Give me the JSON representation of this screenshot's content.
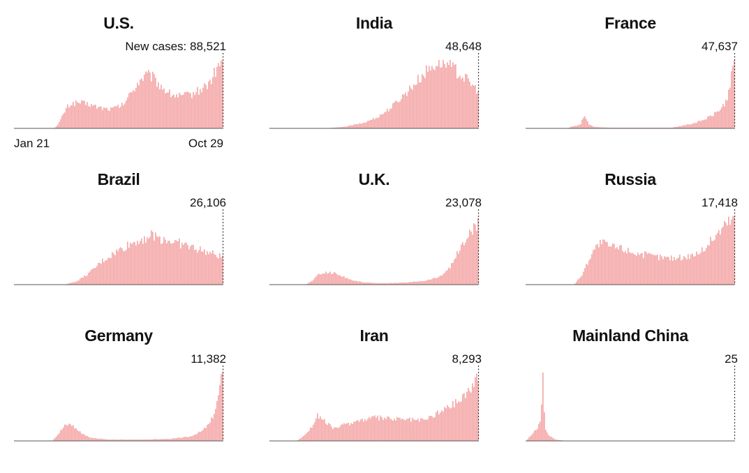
{
  "chart_data": [
    {
      "type": "bar",
      "title": "U.S.",
      "latest_label": "New cases: 88,521",
      "x_start_label": "Jan 21",
      "x_end_label": "Oct 29",
      "color": "#f4a6a6",
      "shape": [
        [
          0,
          0
        ],
        [
          0.19,
          0
        ],
        [
          0.21,
          0.06
        ],
        [
          0.25,
          0.3
        ],
        [
          0.27,
          0.36
        ],
        [
          0.31,
          0.38
        ],
        [
          0.36,
          0.35
        ],
        [
          0.4,
          0.31
        ],
        [
          0.46,
          0.28
        ],
        [
          0.52,
          0.34
        ],
        [
          0.56,
          0.52
        ],
        [
          0.6,
          0.7
        ],
        [
          0.63,
          0.78
        ],
        [
          0.66,
          0.76
        ],
        [
          0.7,
          0.63
        ],
        [
          0.75,
          0.5
        ],
        [
          0.8,
          0.47
        ],
        [
          0.85,
          0.5
        ],
        [
          0.9,
          0.58
        ],
        [
          0.94,
          0.68
        ],
        [
          0.97,
          0.86
        ],
        [
          1.0,
          1.0
        ]
      ]
    },
    {
      "type": "bar",
      "title": "India",
      "latest_label": "48,648",
      "color": "#f4a6a6",
      "shape": [
        [
          0,
          0
        ],
        [
          0.26,
          0
        ],
        [
          0.35,
          0.02
        ],
        [
          0.45,
          0.08
        ],
        [
          0.52,
          0.17
        ],
        [
          0.58,
          0.3
        ],
        [
          0.64,
          0.48
        ],
        [
          0.7,
          0.67
        ],
        [
          0.76,
          0.86
        ],
        [
          0.8,
          0.95
        ],
        [
          0.83,
          0.98
        ],
        [
          0.87,
          0.9
        ],
        [
          0.92,
          0.78
        ],
        [
          0.96,
          0.67
        ],
        [
          1.0,
          0.55
        ]
      ]
    },
    {
      "type": "bar",
      "title": "France",
      "latest_label": "47,637",
      "color": "#f4a6a6",
      "shape": [
        [
          0,
          0
        ],
        [
          0.2,
          0
        ],
        [
          0.22,
          0.03
        ],
        [
          0.26,
          0.05
        ],
        [
          0.28,
          0.2
        ],
        [
          0.3,
          0.06
        ],
        [
          0.33,
          0.02
        ],
        [
          0.4,
          0.01
        ],
        [
          0.7,
          0.01
        ],
        [
          0.75,
          0.04
        ],
        [
          0.8,
          0.07
        ],
        [
          0.85,
          0.12
        ],
        [
          0.9,
          0.2
        ],
        [
          0.94,
          0.3
        ],
        [
          0.97,
          0.45
        ],
        [
          1.0,
          1.0
        ]
      ]
    },
    {
      "type": "bar",
      "title": "Brazil",
      "latest_label": "26,106",
      "color": "#f4a6a6",
      "shape": [
        [
          0,
          0
        ],
        [
          0.24,
          0
        ],
        [
          0.3,
          0.05
        ],
        [
          0.36,
          0.17
        ],
        [
          0.42,
          0.34
        ],
        [
          0.5,
          0.5
        ],
        [
          0.56,
          0.6
        ],
        [
          0.62,
          0.68
        ],
        [
          0.66,
          0.72
        ],
        [
          0.7,
          0.68
        ],
        [
          0.76,
          0.63
        ],
        [
          0.82,
          0.58
        ],
        [
          0.88,
          0.52
        ],
        [
          0.94,
          0.46
        ],
        [
          1.0,
          0.4
        ]
      ]
    },
    {
      "type": "bar",
      "title": "U.K.",
      "latest_label": "23,078",
      "color": "#f4a6a6",
      "shape": [
        [
          0,
          0
        ],
        [
          0.17,
          0
        ],
        [
          0.2,
          0.05
        ],
        [
          0.23,
          0.14
        ],
        [
          0.27,
          0.18
        ],
        [
          0.31,
          0.17
        ],
        [
          0.35,
          0.12
        ],
        [
          0.4,
          0.06
        ],
        [
          0.46,
          0.03
        ],
        [
          0.55,
          0.02
        ],
        [
          0.65,
          0.03
        ],
        [
          0.75,
          0.06
        ],
        [
          0.82,
          0.12
        ],
        [
          0.87,
          0.28
        ],
        [
          0.91,
          0.5
        ],
        [
          0.95,
          0.7
        ],
        [
          1.0,
          0.88
        ]
      ]
    },
    {
      "type": "bar",
      "title": "Russia",
      "latest_label": "17,418",
      "color": "#f4a6a6",
      "shape": [
        [
          0,
          0
        ],
        [
          0.23,
          0
        ],
        [
          0.27,
          0.15
        ],
        [
          0.32,
          0.5
        ],
        [
          0.36,
          0.62
        ],
        [
          0.4,
          0.56
        ],
        [
          0.45,
          0.54
        ],
        [
          0.52,
          0.47
        ],
        [
          0.6,
          0.42
        ],
        [
          0.68,
          0.39
        ],
        [
          0.76,
          0.4
        ],
        [
          0.84,
          0.48
        ],
        [
          0.9,
          0.68
        ],
        [
          0.95,
          0.86
        ],
        [
          1.0,
          1.0
        ]
      ]
    },
    {
      "type": "bar",
      "title": "Germany",
      "latest_label": "11,382",
      "color": "#f4a6a6",
      "shape": [
        [
          0,
          0
        ],
        [
          0.18,
          0
        ],
        [
          0.21,
          0.1
        ],
        [
          0.24,
          0.22
        ],
        [
          0.27,
          0.25
        ],
        [
          0.31,
          0.14
        ],
        [
          0.36,
          0.05
        ],
        [
          0.45,
          0.02
        ],
        [
          0.6,
          0.02
        ],
        [
          0.75,
          0.03
        ],
        [
          0.84,
          0.06
        ],
        [
          0.9,
          0.14
        ],
        [
          0.94,
          0.26
        ],
        [
          0.97,
          0.5
        ],
        [
          1.0,
          1.0
        ]
      ]
    },
    {
      "type": "bar",
      "title": "Iran",
      "latest_label": "8,293",
      "color": "#f4a6a6",
      "shape": [
        [
          0,
          0
        ],
        [
          0.13,
          0
        ],
        [
          0.17,
          0.1
        ],
        [
          0.2,
          0.2
        ],
        [
          0.23,
          0.38
        ],
        [
          0.27,
          0.26
        ],
        [
          0.31,
          0.18
        ],
        [
          0.36,
          0.24
        ],
        [
          0.43,
          0.3
        ],
        [
          0.5,
          0.34
        ],
        [
          0.6,
          0.32
        ],
        [
          0.68,
          0.31
        ],
        [
          0.74,
          0.3
        ],
        [
          0.8,
          0.4
        ],
        [
          0.86,
          0.5
        ],
        [
          0.92,
          0.62
        ],
        [
          1.0,
          0.92
        ]
      ]
    },
    {
      "type": "bar",
      "title": "Mainland China",
      "latest_label": "25",
      "color": "#f4a6a6",
      "shape": [
        [
          0,
          0
        ],
        [
          0.02,
          0.07
        ],
        [
          0.05,
          0.18
        ],
        [
          0.07,
          0.28
        ],
        [
          0.08,
          1.0
        ],
        [
          0.09,
          0.18
        ],
        [
          0.11,
          0.08
        ],
        [
          0.14,
          0.02
        ],
        [
          0.18,
          0.005
        ],
        [
          1.0,
          0.005
        ]
      ]
    }
  ]
}
